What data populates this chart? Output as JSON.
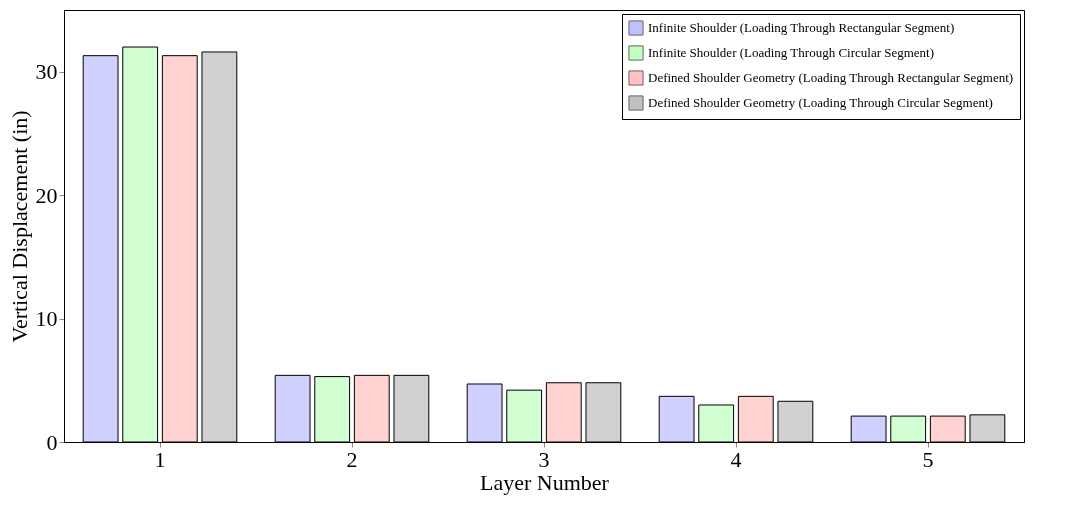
{
  "chart_data": {
    "type": "bar",
    "xlabel": "Layer Number",
    "ylabel": "Vertical Displacement (in)",
    "categories": [
      "1",
      "2",
      "3",
      "4",
      "5"
    ],
    "series": [
      {
        "name": "Infinite Shoulder (Loading Through Rectangular Segment)",
        "color": "#9999ff",
        "values": [
          31.3,
          5.4,
          4.7,
          3.7,
          2.1
        ]
      },
      {
        "name": "Infinite Shoulder (Loading Through Circular Segment)",
        "color": "#99ff99",
        "values": [
          32.0,
          5.3,
          4.2,
          3.0,
          2.1
        ]
      },
      {
        "name": "Defined Shoulder Geometry (Loading Through Rectangular Segment)",
        "color": "#ff9999",
        "values": [
          31.3,
          5.4,
          4.8,
          3.7,
          2.1
        ]
      },
      {
        "name": "Defined Shoulder Geometry (Loading Through Circular Segment)",
        "color": "#999999",
        "values": [
          31.6,
          5.4,
          4.8,
          3.3,
          2.2
        ]
      }
    ],
    "ylim": [
      0,
      35
    ],
    "yticks": [
      0,
      10,
      20,
      30
    ],
    "legend": "top right",
    "grid": false
  }
}
